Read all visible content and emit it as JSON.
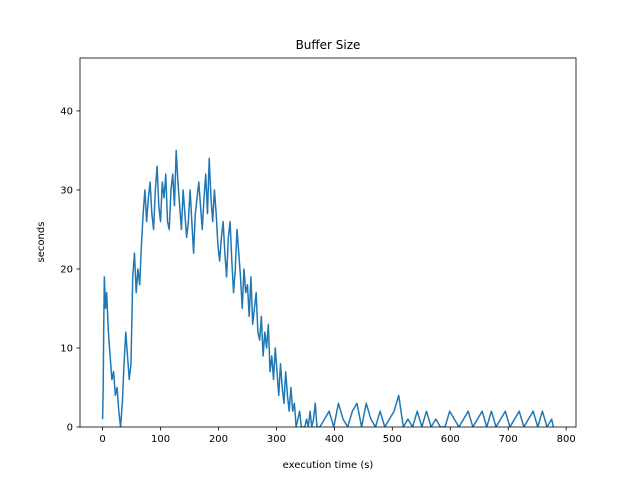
{
  "chart_data": {
    "type": "line",
    "title": "Buffer Size",
    "x_label": "execution time (s)",
    "y_label": "seconds",
    "color": "#1f77b4",
    "x": [
      0,
      1,
      2,
      3,
      5,
      7,
      10,
      13,
      16,
      19,
      22,
      25,
      28,
      31,
      34,
      37,
      40,
      43,
      46,
      49,
      52,
      55,
      58,
      61,
      64,
      67,
      70,
      73,
      76,
      79,
      82,
      85,
      88,
      91,
      94,
      97,
      100,
      103,
      106,
      109,
      112,
      115,
      118,
      121,
      124,
      127,
      130,
      133,
      136,
      139,
      142,
      145,
      148,
      151,
      154,
      157,
      160,
      163,
      166,
      169,
      172,
      175,
      178,
      181,
      184,
      187,
      190,
      193,
      196,
      199,
      202,
      205,
      208,
      211,
      214,
      217,
      220,
      223,
      226,
      229,
      232,
      235,
      238,
      241,
      244,
      247,
      250,
      253,
      256,
      259,
      262,
      265,
      268,
      271,
      274,
      277,
      280,
      283,
      286,
      289,
      292,
      295,
      298,
      301,
      304,
      307,
      310,
      313,
      316,
      319,
      322,
      325,
      328,
      331,
      334,
      337,
      340,
      343,
      346,
      349,
      352,
      355,
      358,
      361,
      364,
      367,
      370,
      375,
      383,
      391,
      399,
      407,
      415,
      423,
      431,
      439,
      447,
      455,
      463,
      471,
      479,
      487,
      495,
      503,
      511,
      519,
      527,
      535,
      543,
      551,
      559,
      567,
      575,
      583,
      591,
      599,
      607,
      615,
      623,
      631,
      639,
      647,
      655,
      663,
      671,
      679,
      687,
      695,
      703,
      711,
      719,
      727,
      735,
      743,
      751,
      759,
      767,
      775,
      778
    ],
    "values": [
      1,
      5,
      13,
      19,
      15,
      17,
      12,
      9,
      6,
      7,
      4,
      5,
      2,
      0,
      3,
      8,
      12,
      9,
      6,
      8,
      19,
      22,
      17,
      20,
      18,
      23,
      27,
      30,
      26,
      29,
      31,
      27,
      25,
      30,
      33,
      28,
      26,
      31,
      29,
      32,
      26,
      25,
      30,
      32,
      28,
      35,
      31,
      28,
      25,
      30,
      27,
      24,
      26,
      30,
      26,
      22,
      27,
      29,
      31,
      28,
      25,
      29,
      32,
      27,
      34,
      29,
      26,
      30,
      27,
      23,
      21,
      24,
      26,
      22,
      19,
      24,
      26,
      21,
      17,
      20,
      25,
      22,
      19,
      15,
      20,
      17,
      18,
      14,
      19,
      13,
      15,
      17,
      12,
      11,
      14,
      9,
      12,
      10,
      13,
      7,
      9,
      6,
      10,
      7,
      4,
      8,
      5,
      3,
      7,
      4,
      2,
      5,
      2,
      3,
      0,
      1,
      2,
      0,
      0,
      0,
      1,
      0,
      2,
      0,
      1,
      3,
      0,
      0,
      1,
      2,
      0,
      3,
      1,
      0,
      2,
      3,
      0,
      3,
      1,
      0,
      2,
      0,
      1,
      2,
      4,
      0,
      1,
      0,
      2,
      0,
      2,
      0,
      1,
      0,
      0,
      2,
      1,
      0,
      1,
      2,
      0,
      1,
      2,
      0,
      2,
      0,
      1,
      2,
      0,
      1,
      2,
      0,
      1,
      2,
      0,
      2,
      0,
      1,
      0
    ],
    "xlim": [
      -39,
      817
    ],
    "ylim": [
      0,
      46.7
    ],
    "xticks": [
      0,
      100,
      200,
      300,
      400,
      500,
      600,
      700,
      800
    ],
    "yticks": [
      0,
      10,
      20,
      30,
      40
    ]
  }
}
